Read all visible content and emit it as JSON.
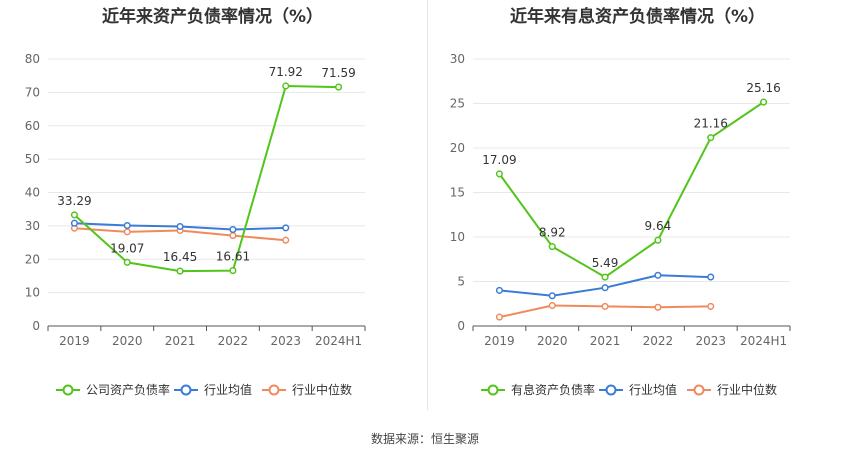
{
  "footer": {
    "source": "数据来源：恒生聚源"
  },
  "chart_data": [
    {
      "type": "line",
      "title": "近年来资产负债率情况（%）",
      "categories": [
        "2019",
        "2020",
        "2021",
        "2022",
        "2023",
        "2024H1"
      ],
      "ylim": [
        0,
        80
      ],
      "yticks": [
        0,
        10,
        20,
        30,
        40,
        50,
        60,
        70,
        80
      ],
      "grid": true,
      "legend_position": "bottom",
      "series": [
        {
          "name": "公司资产负债率",
          "color": "#52c41a",
          "values": [
            33.29,
            19.07,
            16.45,
            16.61,
            71.92,
            71.59
          ],
          "labels": true
        },
        {
          "name": "行业均值",
          "color": "#3a7bd5",
          "values": [
            30.8,
            30.1,
            29.8,
            28.9,
            29.4,
            null
          ],
          "labels": false
        },
        {
          "name": "行业中位数",
          "color": "#f08a5d",
          "values": [
            29.3,
            28.2,
            28.6,
            27.1,
            25.7,
            null
          ],
          "labels": false
        }
      ]
    },
    {
      "type": "line",
      "title": "近年来有息资产负债率情况（%）",
      "categories": [
        "2019",
        "2020",
        "2021",
        "2022",
        "2023",
        "2024H1"
      ],
      "ylim": [
        0,
        30
      ],
      "yticks": [
        0,
        5,
        10,
        15,
        20,
        25,
        30
      ],
      "grid": true,
      "legend_position": "bottom",
      "series": [
        {
          "name": "有息资产负债率",
          "color": "#52c41a",
          "values": [
            17.09,
            8.92,
            5.49,
            9.64,
            21.16,
            25.16
          ],
          "labels": true
        },
        {
          "name": "行业均值",
          "color": "#3a7bd5",
          "values": [
            4.0,
            3.4,
            4.3,
            5.7,
            5.5,
            null
          ],
          "labels": false
        },
        {
          "name": "行业中位数",
          "color": "#f08a5d",
          "values": [
            1.0,
            2.3,
            2.2,
            2.1,
            2.2,
            null
          ],
          "labels": false
        }
      ]
    }
  ]
}
